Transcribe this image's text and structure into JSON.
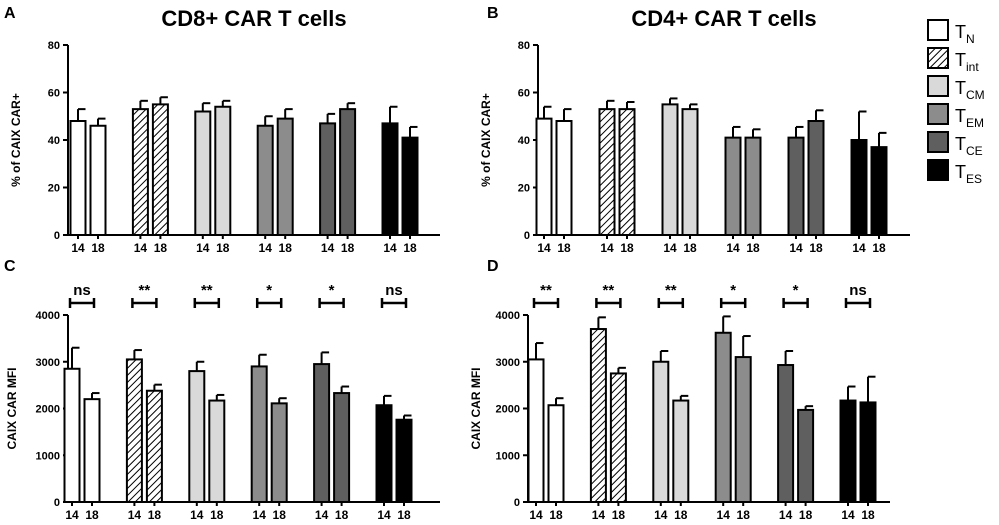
{
  "colors": {
    "TN": "#ffffff",
    "Tint": "hatch",
    "TCM": "#d9d9d9",
    "TEM": "#8c8c8c",
    "TCE": "#5f5f5f",
    "TES": "#000000"
  },
  "legend": [
    {
      "main": "T",
      "sub": "N",
      "color_key": "TN"
    },
    {
      "main": "T",
      "sub": "int",
      "color_key": "Tint"
    },
    {
      "main": "T",
      "sub": "CM",
      "color_key": "TCM"
    },
    {
      "main": "T",
      "sub": "EM",
      "color_key": "TEM"
    },
    {
      "main": "T",
      "sub": "CE",
      "color_key": "TCE"
    },
    {
      "main": "T",
      "sub": "ES",
      "color_key": "TES"
    }
  ],
  "chart_data": [
    {
      "panel": "A",
      "type": "bar",
      "title": "CD8+ CAR T cells",
      "ylabel": "% of CAIX CAR+",
      "ylim": [
        0,
        80
      ],
      "yticks": [
        0,
        20,
        40,
        60,
        80
      ],
      "days": [
        "14",
        "18"
      ],
      "groups": [
        {
          "subset": "TN",
          "values": [
            48,
            46
          ],
          "errors": [
            5,
            3
          ]
        },
        {
          "subset": "Tint",
          "values": [
            53,
            55
          ],
          "errors": [
            3.5,
            3
          ]
        },
        {
          "subset": "TCM",
          "values": [
            52,
            54
          ],
          "errors": [
            3.5,
            2.5
          ]
        },
        {
          "subset": "TEM",
          "values": [
            46,
            49
          ],
          "errors": [
            4,
            4
          ]
        },
        {
          "subset": "TCE",
          "values": [
            47,
            53
          ],
          "errors": [
            4,
            2.5
          ]
        },
        {
          "subset": "TES",
          "values": [
            47,
            41
          ],
          "errors": [
            7,
            4.5
          ]
        }
      ],
      "significance": []
    },
    {
      "panel": "B",
      "type": "bar",
      "title": "CD4+ CAR T cells",
      "ylabel": "% of CAIX CAR+",
      "ylim": [
        0,
        80
      ],
      "yticks": [
        0,
        20,
        40,
        60,
        80
      ],
      "days": [
        "14",
        "18"
      ],
      "groups": [
        {
          "subset": "TN",
          "values": [
            49,
            48
          ],
          "errors": [
            5,
            5
          ]
        },
        {
          "subset": "Tint",
          "values": [
            53,
            53
          ],
          "errors": [
            3.5,
            3
          ]
        },
        {
          "subset": "TCM",
          "values": [
            55,
            53
          ],
          "errors": [
            2.5,
            2
          ]
        },
        {
          "subset": "TEM",
          "values": [
            41,
            41
          ],
          "errors": [
            4.5,
            3.5
          ]
        },
        {
          "subset": "TCE",
          "values": [
            41,
            48
          ],
          "errors": [
            4.5,
            4.5
          ]
        },
        {
          "subset": "TES",
          "values": [
            40,
            37
          ],
          "errors": [
            12,
            6
          ]
        }
      ],
      "significance": []
    },
    {
      "panel": "C",
      "type": "bar",
      "title": "",
      "ylabel": "CAIX CAR MFI",
      "ylim": [
        0,
        4000
      ],
      "yticks": [
        0,
        1000,
        2000,
        3000,
        4000
      ],
      "days": [
        "14",
        "18"
      ],
      "groups": [
        {
          "subset": "TN",
          "values": [
            2850,
            2200
          ],
          "errors": [
            450,
            130
          ]
        },
        {
          "subset": "Tint",
          "values": [
            3050,
            2380
          ],
          "errors": [
            200,
            130
          ]
        },
        {
          "subset": "TCM",
          "values": [
            2800,
            2170
          ],
          "errors": [
            200,
            120
          ]
        },
        {
          "subset": "TEM",
          "values": [
            2900,
            2110
          ],
          "errors": [
            250,
            110
          ]
        },
        {
          "subset": "TCE",
          "values": [
            2950,
            2330
          ],
          "errors": [
            250,
            140
          ]
        },
        {
          "subset": "TES",
          "values": [
            2070,
            1760
          ],
          "errors": [
            200,
            90
          ]
        }
      ],
      "significance": [
        "ns",
        "**",
        "**",
        "*",
        "*",
        "ns"
      ]
    },
    {
      "panel": "D",
      "type": "bar",
      "title": "",
      "ylabel": "CAIX CAR MFI",
      "ylim": [
        0,
        4000
      ],
      "yticks": [
        0,
        1000,
        2000,
        3000,
        4000
      ],
      "days": [
        "14",
        "18"
      ],
      "groups": [
        {
          "subset": "TN",
          "values": [
            3050,
            2070
          ],
          "errors": [
            350,
            150
          ]
        },
        {
          "subset": "Tint",
          "values": [
            3700,
            2750
          ],
          "errors": [
            250,
            120
          ]
        },
        {
          "subset": "TCM",
          "values": [
            3000,
            2170
          ],
          "errors": [
            230,
            100
          ]
        },
        {
          "subset": "TEM",
          "values": [
            3620,
            3100
          ],
          "errors": [
            350,
            450
          ]
        },
        {
          "subset": "TCE",
          "values": [
            2930,
            1970
          ],
          "errors": [
            300,
            80
          ]
        },
        {
          "subset": "TES",
          "values": [
            2170,
            2130
          ],
          "errors": [
            300,
            550
          ]
        }
      ],
      "significance": [
        "**",
        "**",
        "**",
        "*",
        "*",
        "ns"
      ]
    }
  ]
}
